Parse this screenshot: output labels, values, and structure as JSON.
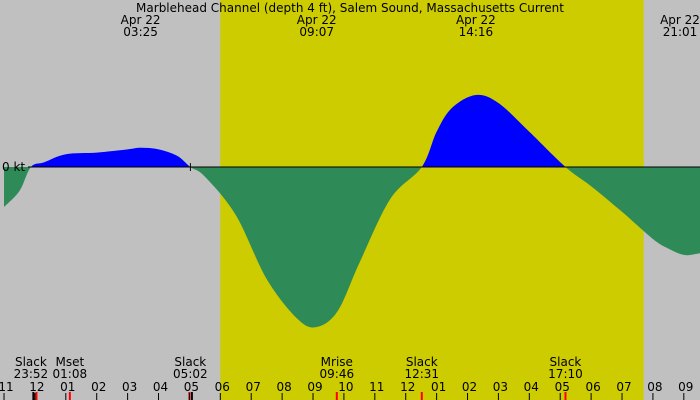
{
  "chart_data": {
    "type": "area",
    "title": "Marblehead Channel (depth 4 ft), Salem Sound, Massachusetts Current",
    "zero_label": "0 kt",
    "x_unit": "hour of day (Apr 22)",
    "xlim": [
      22.9,
      33.3
    ],
    "ylim": [
      -1.05,
      0.55
    ],
    "colors": {
      "background": "#c0c0c0",
      "daylight": "#cccc00",
      "flood": "#0000ff",
      "ebb": "#2e8b57",
      "marker_red": "#ff0000",
      "marker_black": "#000000"
    },
    "daylight_range": [
      6.0,
      19.7
    ],
    "top_labels": [
      {
        "date": "Apr 22",
        "time": "03:25",
        "x": 3.42
      },
      {
        "date": "Apr 22",
        "time": "09:07",
        "x": 9.12
      },
      {
        "date": "Apr 22",
        "time": "14:16",
        "x": 14.27
      },
      {
        "date": "Apr 22",
        "time": "21:01",
        "x": 21.02
      }
    ],
    "bottom_labels": [
      {
        "name": "Slack",
        "time": "23:52",
        "x": -0.13
      },
      {
        "name": "Mset",
        "time": "01:08",
        "x": 1.13
      },
      {
        "name": "Slack",
        "time": "05:02",
        "x": 5.03
      },
      {
        "name": "Mrise",
        "time": "09:46",
        "x": 9.77
      },
      {
        "name": "Slack",
        "time": "12:31",
        "x": 12.52
      },
      {
        "name": "Slack",
        "time": "17:10",
        "x": 17.17
      }
    ],
    "x_ticks": [
      "11",
      "12",
      "01",
      "02",
      "03",
      "04",
      "05",
      "06",
      "07",
      "08",
      "09",
      "10",
      "11",
      "12",
      "01",
      "02",
      "03",
      "04",
      "05",
      "06",
      "07",
      "08",
      "09"
    ],
    "x_tick_values": [
      -1,
      0,
      1,
      2,
      3,
      4,
      5,
      6,
      7,
      8,
      9,
      10,
      11,
      12,
      13,
      14,
      15,
      16,
      17,
      18,
      19,
      20,
      21
    ],
    "marks": [
      {
        "kind": "black",
        "x": -0.05
      },
      {
        "kind": "red",
        "x": 0.05
      },
      {
        "kind": "red",
        "x": 1.13
      },
      {
        "kind": "red",
        "x": 5.0
      },
      {
        "kind": "black",
        "x": 5.08
      },
      {
        "kind": "red",
        "x": 9.77
      },
      {
        "kind": "red",
        "x": 12.52
      },
      {
        "kind": "red",
        "x": 17.17
      }
    ],
    "series": [
      {
        "x": [
          -1.0,
          -0.5,
          -0.13,
          0.3,
          1.0,
          2.0,
          3.0,
          3.42,
          4.0,
          4.6,
          5.03,
          5.5,
          6.5,
          7.5,
          8.5,
          9.12,
          9.8,
          10.5,
          11.5,
          12.52,
          13.0,
          13.5,
          14.27,
          15.0,
          16.0,
          17.17,
          18.0,
          19.0,
          20.0,
          20.5,
          21.02,
          21.5,
          21.8
        ],
        "y": [
          -0.25,
          -0.15,
          0.0,
          0.03,
          0.08,
          0.09,
          0.11,
          0.12,
          0.11,
          0.07,
          0.0,
          -0.06,
          -0.3,
          -0.7,
          -0.95,
          -1.0,
          -0.9,
          -0.6,
          -0.2,
          0.0,
          0.22,
          0.37,
          0.45,
          0.4,
          0.22,
          0.0,
          -0.12,
          -0.28,
          -0.45,
          -0.51,
          -0.55,
          -0.54,
          -0.53
        ]
      }
    ]
  }
}
